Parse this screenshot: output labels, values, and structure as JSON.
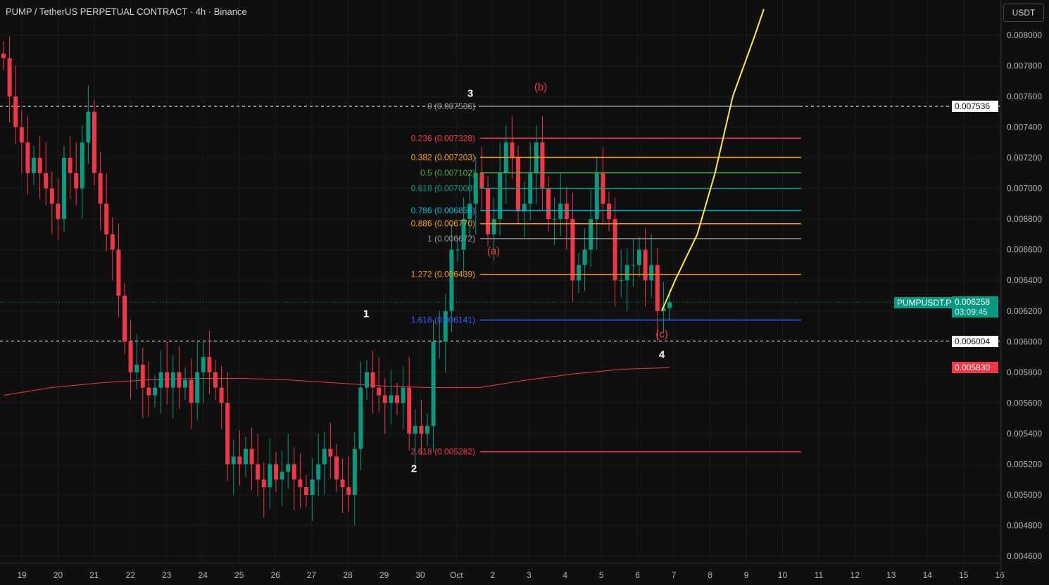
{
  "header": {
    "title": "PUMP / TetherUS PERPETUAL CONTRACT · 4h · Binance",
    "currency": "USDT"
  },
  "price_tags": {
    "symbol": "PUMPUSDT.P",
    "last": "0.006258",
    "countdown": "03:09:45",
    "level_high": "0.007536",
    "level_low": "0.006004",
    "ma": "0.005830"
  },
  "wave_labels": {
    "w1": "1",
    "w2": "2",
    "w3": "3",
    "w4": "4",
    "a": "(a)",
    "b": "(b)",
    "c": "(c)"
  },
  "colors": {
    "up": "#089981",
    "down": "#f23645",
    "ma": "#f23645",
    "projection": "#ffeb3b",
    "bg": "#0f0f0f"
  },
  "chart_data": {
    "type": "candlestick",
    "timeframe": "4h",
    "ylim": [
      0.0046,
      0.0081
    ],
    "y_ticks": [
      "0.008000",
      "0.007800",
      "0.007600",
      "0.007400",
      "0.007200",
      "0.007000",
      "0.006800",
      "0.006600",
      "0.006400",
      "0.006200",
      "0.006000",
      "0.005800",
      "0.005600",
      "0.005400",
      "0.005200",
      "0.005000",
      "0.004800",
      "0.004600"
    ],
    "x_ticks": [
      "19",
      "20",
      "21",
      "22",
      "23",
      "24",
      "25",
      "26",
      "27",
      "28",
      "29",
      "30",
      "Oct",
      "2",
      "3",
      "4",
      "5",
      "6",
      "7",
      "8",
      "9",
      "10",
      "11",
      "12",
      "13",
      "14",
      "15",
      "16"
    ],
    "first_open": 0.00788,
    "closes": [
      0.00785,
      0.0076,
      0.0074,
      0.0073,
      0.0071,
      0.0072,
      0.0071,
      0.007,
      0.0069,
      0.0068,
      0.0072,
      0.0071,
      0.007,
      0.0073,
      0.0075,
      0.0071,
      0.0069,
      0.0067,
      0.0066,
      0.0063,
      0.006,
      0.0058,
      0.00585,
      0.0057,
      0.00565,
      0.0057,
      0.0058,
      0.0057,
      0.0058,
      0.0057,
      0.00575,
      0.0056,
      0.0058,
      0.0059,
      0.0058,
      0.0057,
      0.0056,
      0.0052,
      0.00525,
      0.0052,
      0.0053,
      0.0052,
      0.0051,
      0.00505,
      0.0052,
      0.0051,
      0.00515,
      0.0052,
      0.0051,
      0.00505,
      0.005,
      0.0051,
      0.0052,
      0.0053,
      0.00525,
      0.0051,
      0.00505,
      0.005,
      0.0053,
      0.0057,
      0.0058,
      0.0057,
      0.00565,
      0.0056,
      0.00565,
      0.0056,
      0.0057,
      0.0054,
      0.00545,
      0.0054,
      0.00545,
      0.006,
      0.006,
      0.0062,
      0.0066,
      0.0066,
      0.0068,
      0.0069,
      0.0071,
      0.007,
      0.0067,
      0.0068,
      0.0071,
      0.0073,
      0.0072,
      0.00685,
      0.0069,
      0.0071,
      0.0073,
      0.007,
      0.0068,
      0.0068,
      0.0069,
      0.0068,
      0.0064,
      0.0065,
      0.0066,
      0.0068,
      0.0071,
      0.0069,
      0.0068,
      0.0064,
      0.0064,
      0.0065,
      0.0065,
      0.0066,
      0.0064,
      0.0065,
      0.0062,
      0.00622,
      0.006258
    ],
    "moving_average": [
      0.00565,
      0.0057,
      0.00573,
      0.00575,
      0.00576,
      0.00576,
      0.00575,
      0.00573,
      0.00571,
      0.0057,
      0.0057,
      0.00575,
      0.00579,
      0.00582,
      0.00583
    ],
    "fib_levels": [
      {
        "ratio": "0",
        "price": "0.007536",
        "color": "#9598a1"
      },
      {
        "ratio": "0.236",
        "price": "0.007328",
        "color": "#f23645"
      },
      {
        "ratio": "0.382",
        "price": "0.007203",
        "color": "#ff9800"
      },
      {
        "ratio": "0.5",
        "price": "0.007102",
        "color": "#4caf50"
      },
      {
        "ratio": "0.618",
        "price": "0.007000",
        "color": "#089981"
      },
      {
        "ratio": "0.786",
        "price": "0.006856",
        "color": "#00bcd4"
      },
      {
        "ratio": "0.886",
        "price": "0.006770",
        "color": "#ff9800"
      },
      {
        "ratio": "1",
        "price": "0.006672",
        "color": "#9598a1"
      },
      {
        "ratio": "1.272",
        "price": "0.006439",
        "color": "#ff9800"
      },
      {
        "ratio": "1.618",
        "price": "0.006141",
        "color": "#2962ff"
      },
      {
        "ratio": "2.618",
        "price": "0.005282",
        "color": "#f23645"
      }
    ],
    "horizontal_lines": [
      0.007536,
      0.006004
    ],
    "projection": [
      [
        0.0062,
        0
      ],
      [
        0.0064,
        0.3
      ],
      [
        0.0067,
        0.8
      ],
      [
        0.0071,
        1.2
      ],
      [
        0.0076,
        1.6
      ],
      [
        0.008,
        2.1
      ],
      [
        0.00817,
        2.3
      ]
    ]
  }
}
